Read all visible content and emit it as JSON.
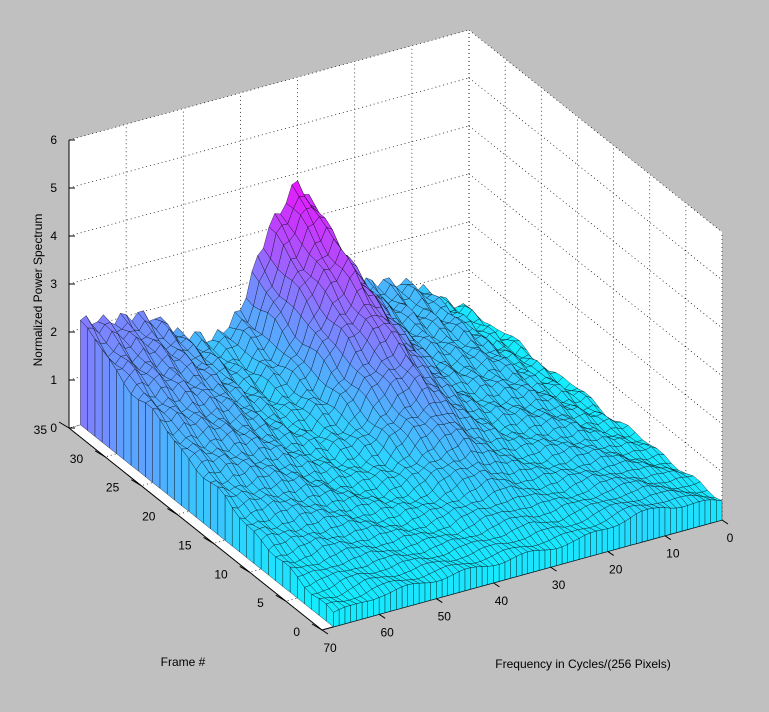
{
  "chart_data": {
    "type": "surface",
    "title": "",
    "xlabel": "Frequency in Cycles/(256 Pixels)",
    "ylabel": "Frame #",
    "zlabel": "Normalized Power Spectrum",
    "xlim": [
      0,
      70
    ],
    "ylim": [
      0,
      35
    ],
    "zlim": [
      0,
      6
    ],
    "x_ticks": [
      0,
      10,
      20,
      30,
      40,
      50,
      60,
      70
    ],
    "y_ticks": [
      0,
      5,
      10,
      15,
      20,
      25,
      30,
      35
    ],
    "z_ticks": [
      0,
      1,
      2,
      3,
      4,
      5,
      6
    ],
    "grid": true,
    "colormap": [
      "#00ffff",
      "#ff00ff"
    ],
    "background": "#c0c0c0",
    "plot_background": "#ffffff",
    "frames": [
      0,
      35
    ],
    "frequency_range": [
      0,
      68
    ],
    "surface_profile_at_frame_35": {
      "frequency": [
        0,
        5,
        10,
        15,
        20,
        25,
        30,
        35,
        40,
        45,
        50,
        55,
        60,
        65,
        68
      ],
      "power": [
        0.2,
        0.5,
        1.1,
        1.2,
        1.4,
        2.6,
        3.9,
        3.0,
        1.5,
        1.0,
        1.3,
        1.8,
        2.0,
        2.1,
        2.1
      ]
    },
    "surface_profile_at_frame_0": {
      "frequency": [
        0,
        5,
        10,
        15,
        20,
        25,
        30,
        35,
        40,
        45,
        50,
        55,
        60,
        65,
        68
      ],
      "power": [
        0.4,
        0.5,
        0.6,
        0.6,
        0.5,
        0.4,
        0.4,
        0.4,
        0.4,
        0.4,
        0.4,
        0.4,
        0.4,
        0.3,
        0.3
      ]
    }
  }
}
